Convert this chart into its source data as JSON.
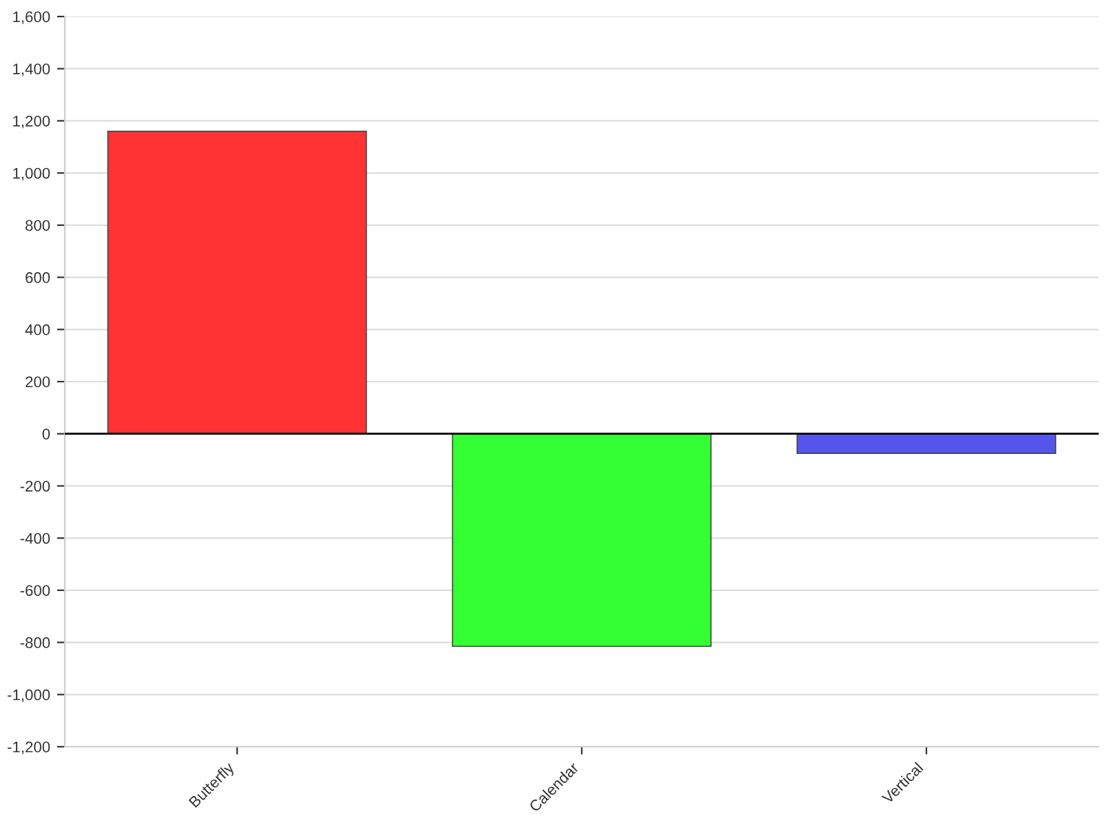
{
  "chart_data": {
    "type": "bar",
    "categories": [
      "Butterfly",
      "Calendar",
      "Vertical"
    ],
    "values": [
      1160,
      -815,
      -75
    ],
    "colors": [
      "#ff3333",
      "#33ff33",
      "#5555ee"
    ],
    "ylim": [
      -1200,
      1600
    ],
    "yticks": [
      {
        "value": -1200,
        "label": "-1,200"
      },
      {
        "value": -1000,
        "label": "-1,000"
      },
      -800,
      -600,
      -400,
      -200,
      0,
      200,
      400,
      600,
      800,
      {
        "value": 1000,
        "label": "1,000"
      },
      {
        "value": 1200,
        "label": "1,200"
      },
      {
        "value": 1400,
        "label": "1,400"
      },
      {
        "value": 1600,
        "label": "1,600"
      }
    ],
    "ref_lines": [
      {
        "axis": "y",
        "value": 0,
        "color": "#000000"
      }
    ],
    "grid": "y",
    "legend": false
  }
}
